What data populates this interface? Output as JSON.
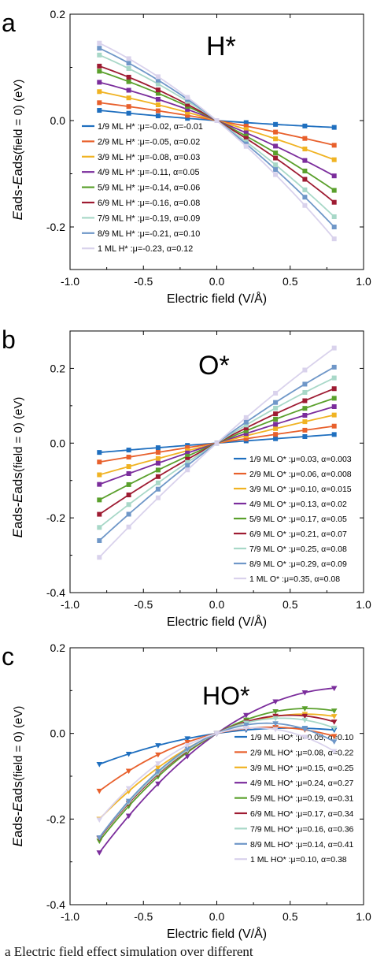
{
  "caption": "a    Electric field effect simulation over different",
  "colors": [
    "#1f6fbf",
    "#e8602c",
    "#f0b323",
    "#7b2d9c",
    "#5aa02c",
    "#9e1b32",
    "#a8d8c8",
    "#6f97c8",
    "#d9d2ec"
  ],
  "chart_data": [
    {
      "type": "line",
      "panel_label": "a",
      "title": "H*",
      "xlabel": "Electric field (V/Å)",
      "ylabel_main": "E",
      "ylabel_sub1": "ads",
      "ylabel_mid": "-E",
      "ylabel_sub2": "ads",
      "ylabel_tail": "(field = 0) (eV)",
      "xlim": [
        -1.0,
        1.0
      ],
      "ylim": [
        -0.28,
        0.2
      ],
      "xticks": [
        "-1.0",
        "-0.5",
        "0.0",
        "0.5",
        "1.0"
      ],
      "xtick_values": [
        -1.0,
        -0.5,
        0.0,
        0.5,
        1.0
      ],
      "yticks": [
        "0.2",
        "0.0",
        "-0.2"
      ],
      "ytick_values": [
        0.2,
        0.0,
        -0.2
      ],
      "legend_position": "bottom-left",
      "marker": "square",
      "x": [
        -0.8,
        -0.6,
        -0.4,
        -0.2,
        0.0,
        0.2,
        0.4,
        0.6,
        0.8
      ],
      "series": [
        {
          "name": "1/9 ML H* :μ=-0.02, α=-0.01",
          "mu": -0.02,
          "alpha": -0.01
        },
        {
          "name": "2/9 ML H* :μ=-0.05, α=0.02",
          "mu": -0.05,
          "alpha": 0.02
        },
        {
          "name": "3/9 ML H* :μ=-0.08, α=0.03",
          "mu": -0.08,
          "alpha": 0.03
        },
        {
          "name": "4/9 ML H* :μ=-0.11, α=0.05",
          "mu": -0.11,
          "alpha": 0.05
        },
        {
          "name": "5/9 ML H* :μ=-0.14, α=0.06",
          "mu": -0.14,
          "alpha": 0.06
        },
        {
          "name": "6/9 ML H* :μ=-0.16, α=0.08",
          "mu": -0.16,
          "alpha": 0.08
        },
        {
          "name": "7/9 ML H* :μ=-0.19, α=0.09",
          "mu": -0.19,
          "alpha": 0.09
        },
        {
          "name": "8/9 ML H* :μ=-0.21, α=0.10",
          "mu": -0.21,
          "alpha": 0.1
        },
        {
          "name": "1  ML  H* :μ=-0.23, α=0.12",
          "mu": -0.23,
          "alpha": 0.12
        }
      ]
    },
    {
      "type": "line",
      "panel_label": "b",
      "title": "O*",
      "xlabel": "Electric field (V/Å)",
      "ylabel_main": "E",
      "ylabel_sub1": "ads",
      "ylabel_mid": "-E",
      "ylabel_sub2": "ads",
      "ylabel_tail": "(field = 0) (eV)",
      "xlim": [
        -1.0,
        1.0
      ],
      "ylim": [
        -0.4,
        0.3
      ],
      "xticks": [
        "-1.0",
        "-0.5",
        "0.0",
        "0.5",
        "1.0"
      ],
      "xtick_values": [
        -1.0,
        -0.5,
        0.0,
        0.5,
        1.0
      ],
      "yticks": [
        "0.2",
        "0.0",
        "-0.2",
        "-0.4"
      ],
      "ytick_values": [
        0.2,
        0.0,
        -0.2,
        -0.4
      ],
      "legend_position": "bottom-right",
      "marker": "square",
      "x": [
        -0.8,
        -0.6,
        -0.4,
        -0.2,
        0.0,
        0.2,
        0.4,
        0.6,
        0.8
      ],
      "series": [
        {
          "name": "1/9 ML O* :μ=0.03, α=0.003",
          "mu": 0.03,
          "alpha": 0.003
        },
        {
          "name": "2/9 ML O* :μ=0.06, α=0.008",
          "mu": 0.06,
          "alpha": 0.008
        },
        {
          "name": "3/9 ML O* :μ=0.10, α=0.015",
          "mu": 0.1,
          "alpha": 0.015
        },
        {
          "name": "4/9 ML O* :μ=0.13, α=0.02",
          "mu": 0.13,
          "alpha": 0.02
        },
        {
          "name": "5/9 ML O* :μ=0.17, α=0.05",
          "mu": 0.17,
          "alpha": 0.05
        },
        {
          "name": "6/9 ML O* :μ=0.21, α=0.07",
          "mu": 0.21,
          "alpha": 0.07
        },
        {
          "name": "7/9 ML O* :μ=0.25, α=0.08",
          "mu": 0.25,
          "alpha": 0.08
        },
        {
          "name": "8/9 ML O* :μ=0.29, α=0.09",
          "mu": 0.29,
          "alpha": 0.09
        },
        {
          "name": "1  ML  O* :μ=0.35, α=0.08",
          "mu": 0.35,
          "alpha": 0.08
        }
      ]
    },
    {
      "type": "line",
      "panel_label": "c",
      "title": "HO*",
      "xlabel": "Electric field (V/Å)",
      "ylabel_main": "E",
      "ylabel_sub1": "ads",
      "ylabel_mid": "-E",
      "ylabel_sub2": "ads",
      "ylabel_tail": "(field = 0) (eV)",
      "xlim": [
        -1.0,
        1.0
      ],
      "ylim": [
        -0.4,
        0.2
      ],
      "xticks": [
        "-1.0",
        "-0.5",
        "0.0",
        "0.5",
        "1.0"
      ],
      "xtick_values": [
        -1.0,
        -0.5,
        0.0,
        0.5,
        1.0
      ],
      "yticks": [
        "0.2",
        "0.0",
        "-0.2",
        "-0.4"
      ],
      "ytick_values": [
        0.2,
        0.0,
        -0.2,
        -0.4
      ],
      "legend_position": "bottom-right",
      "marker": "triangle",
      "x": [
        -0.8,
        -0.6,
        -0.4,
        -0.2,
        0.0,
        0.2,
        0.4,
        0.6,
        0.8
      ],
      "series": [
        {
          "name": "1/9 ML HO* :μ=0.05, α=0.10",
          "mu": 0.05,
          "alpha": 0.1
        },
        {
          "name": "2/9 ML HO* :μ=0.08, α=0.22",
          "mu": 0.08,
          "alpha": 0.22
        },
        {
          "name": "3/9 ML HO* :μ=0.15, α=0.25",
          "mu": 0.15,
          "alpha": 0.25
        },
        {
          "name": "4/9 ML HO* :μ=0.24, α=0.27",
          "mu": 0.24,
          "alpha": 0.27
        },
        {
          "name": "5/9 ML HO* :μ=0.19, α=0.31",
          "mu": 0.19,
          "alpha": 0.31
        },
        {
          "name": "6/9 ML HO* :μ=0.17, α=0.34",
          "mu": 0.17,
          "alpha": 0.34
        },
        {
          "name": "7/9 ML HO* :μ=0.16, α=0.36",
          "mu": 0.16,
          "alpha": 0.36
        },
        {
          "name": "8/9 ML HO* :μ=0.14, α=0.41",
          "mu": 0.14,
          "alpha": 0.41
        },
        {
          "name": "1  ML  HO* :μ=0.10, α=0.38",
          "mu": 0.1,
          "alpha": 0.38
        }
      ]
    }
  ]
}
